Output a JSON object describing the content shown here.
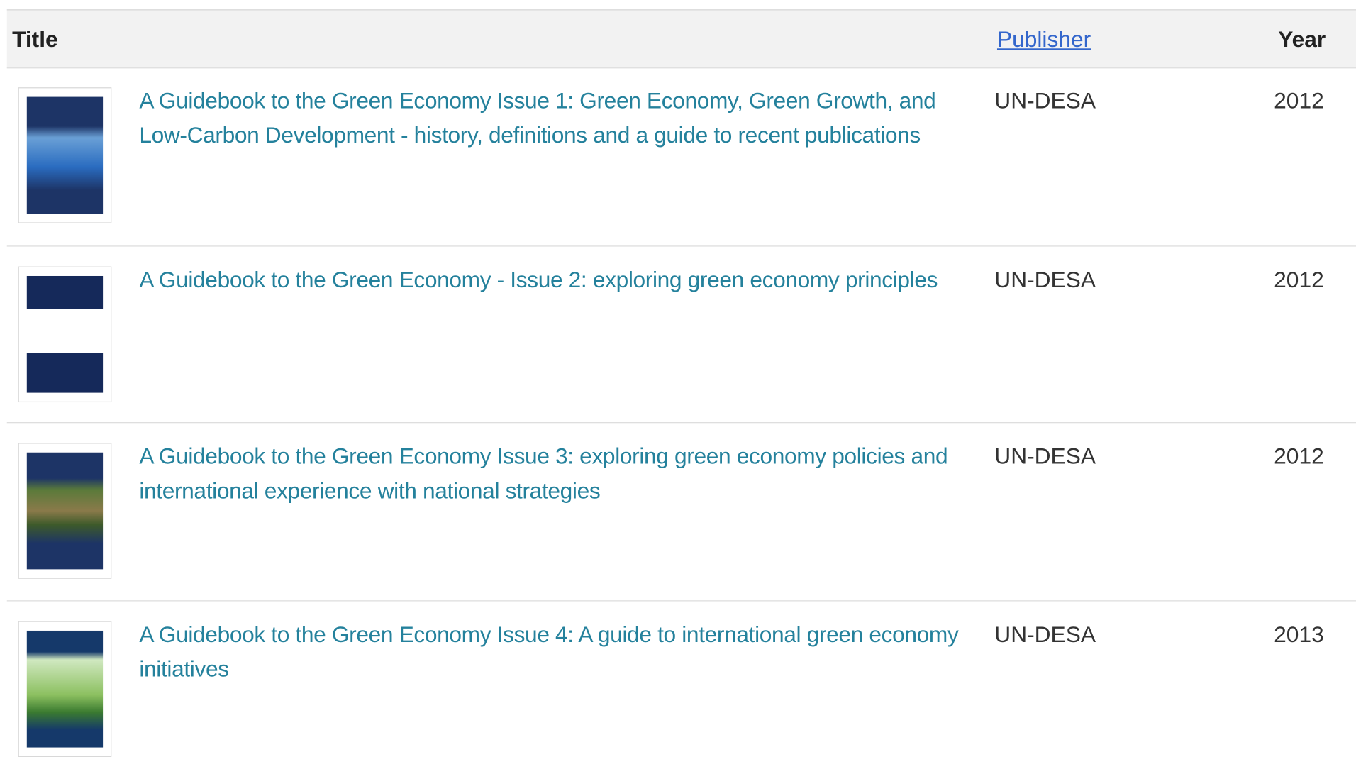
{
  "header": {
    "title": "Title",
    "publisher": "Publisher",
    "year": "Year"
  },
  "rows": [
    {
      "title": "A Guidebook to the Green Economy Issue 1: Green Economy, Green Growth, and Low-Carbon Development - history, definitions and a guide to recent publications",
      "publisher": "UN-DESA",
      "year": 2012
    },
    {
      "title": "A Guidebook to the Green Economy - Issue 2: exploring green economy principles",
      "publisher": "UN-DESA",
      "year": 2012
    },
    {
      "title": "A Guidebook to the Green Economy Issue 3: exploring green economy policies and international experience with national strategies",
      "publisher": "UN-DESA",
      "year": 2012
    },
    {
      "title": "A Guidebook to the Green Economy Issue 4: A guide to international green economy initiatives",
      "publisher": "UN-DESA",
      "year": 2013
    }
  ]
}
